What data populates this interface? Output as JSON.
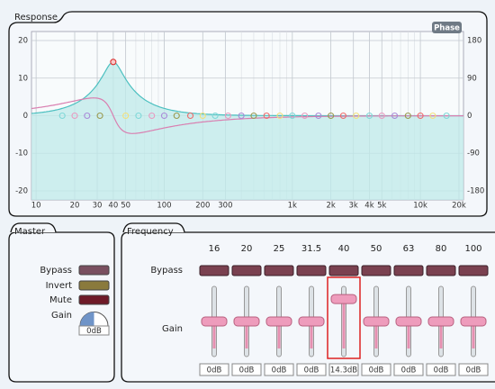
{
  "response": {
    "title": "Response",
    "phase_button": "Phase",
    "xlim": [
      9.2,
      21700
    ],
    "ylim": [
      -22.4,
      22.4
    ],
    "y2lim": [
      -201.6,
      201.6
    ],
    "xticks": [
      10,
      20,
      30,
      40,
      50,
      100,
      200,
      300,
      {
        "value": 1000,
        "label": "1k"
      },
      {
        "value": 2000,
        "label": "2k"
      },
      {
        "value": 3000,
        "label": "3k"
      },
      {
        "value": 4000,
        "label": "4k"
      },
      {
        "value": 5000,
        "label": "5k"
      },
      {
        "value": 10000,
        "label": "10k"
      },
      {
        "value": 20000,
        "label": "20k"
      }
    ],
    "yticks": [
      20,
      10,
      0,
      -10,
      -20
    ],
    "y2ticks": [
      180,
      90,
      0,
      -90,
      -180
    ],
    "markers": [
      16,
      20,
      25,
      31.5,
      40,
      50,
      63,
      80,
      100,
      125,
      160,
      200,
      250,
      315,
      400,
      500,
      630,
      800,
      1000,
      1250,
      1600,
      2000,
      2500,
      3150,
      4000,
      5000,
      6300,
      8000,
      10000,
      12500,
      16000
    ],
    "marker_colors": [
      "#7fd8d8",
      "#e89ac0",
      "#a98ad8",
      "#9a9a50",
      "#ef6b6b",
      "#f3e07a"
    ]
  },
  "master": {
    "title": "Master",
    "bypass": "Bypass",
    "invert": "Invert",
    "mute": "Mute",
    "gain": "Gain",
    "gain_value": "0dB"
  },
  "frequency": {
    "title": "Frequency",
    "bypass": "Bypass",
    "gain": "Gain",
    "bands": [
      {
        "label": "16",
        "gain": "0dB"
      },
      {
        "label": "20",
        "gain": "0dB"
      },
      {
        "label": "25",
        "gain": "0dB"
      },
      {
        "label": "31.5",
        "gain": "0dB"
      },
      {
        "label": "40",
        "gain": "14.3dB"
      },
      {
        "label": "50",
        "gain": "0dB"
      },
      {
        "label": "63",
        "gain": "0dB"
      },
      {
        "label": "80",
        "gain": "0dB"
      },
      {
        "label": "100",
        "gain": "0dB"
      }
    ]
  }
}
